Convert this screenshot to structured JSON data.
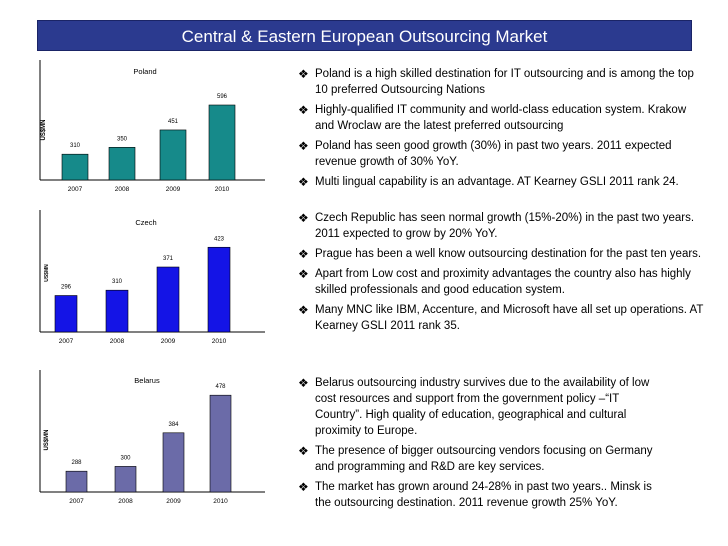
{
  "title": "Central & Eastern European Outsourcing Market",
  "colors": {
    "title_bg": "#2b3a8f",
    "poland_bar": "#168a8a",
    "czech_bar": "#1414e6",
    "belarus_bar": "#6b6ba8"
  },
  "bullet_icon": "diamond-bullet-icon",
  "chart_data": [
    {
      "type": "bar",
      "title": "Poland",
      "ylabel": "US$MN",
      "categories": [
        "2007",
        "2008",
        "2009",
        "2010"
      ],
      "values": [
        310,
        350,
        451,
        596
      ],
      "color": "#168a8a"
    },
    {
      "type": "bar",
      "title": "Czech",
      "ylabel": "US$MN",
      "categories": [
        "2007",
        "2008",
        "2009",
        "2010"
      ],
      "values": [
        296,
        310,
        371,
        423
      ],
      "color": "#1414e6"
    },
    {
      "type": "bar",
      "title": "Belarus",
      "ylabel": "US$MN",
      "categories": [
        "2007",
        "2008",
        "2009",
        "2010"
      ],
      "values": [
        288,
        300,
        384,
        478
      ],
      "color": "#6b6ba8"
    }
  ],
  "bullets": {
    "poland": [
      "Poland is a high skilled destination for IT outsourcing and is among the top 10 preferred Outsourcing Nations",
      "Highly-qualified IT community and world-class education system. Krakow and Wroclaw are the latest preferred outsourcing",
      "Poland has seen good growth (30%) in past two years. 2011 expected revenue growth of 30% YoY.",
      "Multi lingual capability is an advantage. AT Kearney GSLI 2011 rank 24."
    ],
    "czech": [
      "Czech Republic has seen normal growth (15%-20%) in the past two years. 2011 expected to grow by 20% YoY.",
      " Prague has been a well know outsourcing destination for the past ten years.",
      "Apart from Low cost and proximity advantages the country also has highly skilled professionals and good education system.",
      "Many MNC like IBM, Accenture, and Microsoft have all set up operations. AT Kearney GSLI 2011 rank 35."
    ],
    "belarus": [
      "Belarus outsourcing industry survives due to the availability of low cost resources and support from the government policy –“IT Country”. High quality of education, geographical and cultural proximity to Europe.",
      "The presence of bigger outsourcing vendors focusing on Germany and programming and R&D are key services.",
      "The market has grown around 24-28% in past two years.. Minsk is the outsourcing destination. 2011 revenue growth 25% YoY."
    ]
  }
}
